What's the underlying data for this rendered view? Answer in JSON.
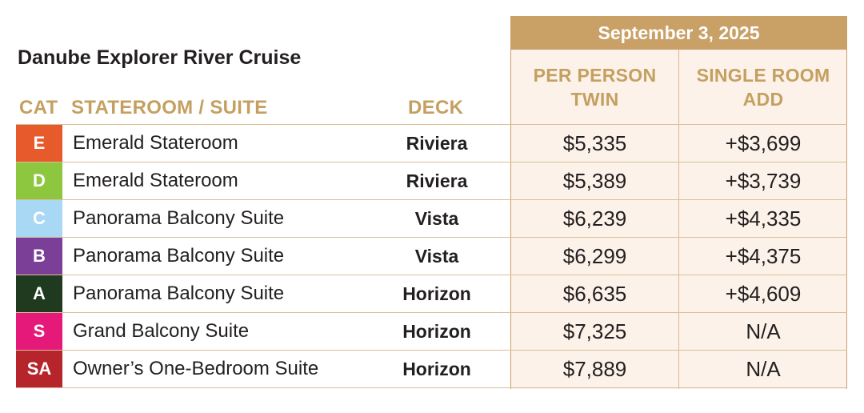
{
  "title": "Danube Explorer River Cruise",
  "date_header": "September 3, 2025",
  "headers": {
    "cat": "CAT",
    "room": "STATEROOM / SUITE",
    "deck": "DECK",
    "twin_line1": "PER PERSON",
    "twin_line2": "TWIN",
    "single_line1": "SINGLE ROOM",
    "single_line2": "ADD"
  },
  "colors": {
    "accent_gold": "#c9a066",
    "panel_bg": "#fcf2e9"
  },
  "rows": [
    {
      "cat": "E",
      "cat_color": "#e65a2c",
      "room": "Emerald Stateroom",
      "deck": "Riviera",
      "twin": "$5,335",
      "single": "+$3,699"
    },
    {
      "cat": "D",
      "cat_color": "#8dc63f",
      "room": "Emerald Stateroom",
      "deck": "Riviera",
      "twin": "$5,389",
      "single": "+$3,739"
    },
    {
      "cat": "C",
      "cat_color": "#a9d8f5",
      "room": "Panorama Balcony Suite",
      "deck": "Vista",
      "twin": "$6,239",
      "single": "+$4,335"
    },
    {
      "cat": "B",
      "cat_color": "#7b3f98",
      "room": "Panorama Balcony Suite",
      "deck": "Vista",
      "twin": "$6,299",
      "single": "+$4,375"
    },
    {
      "cat": "A",
      "cat_color": "#1f3a1f",
      "room": "Panorama Balcony Suite",
      "deck": "Horizon",
      "twin": "$6,635",
      "single": "+$4,609"
    },
    {
      "cat": "S",
      "cat_color": "#e5197a",
      "room": "Grand Balcony Suite",
      "deck": "Horizon",
      "twin": "$7,325",
      "single": "N/A"
    },
    {
      "cat": "SA",
      "cat_color": "#b5252b",
      "room": "Owner’s One-Bedroom Suite",
      "deck": "Horizon",
      "twin": "$7,889",
      "single": "N/A"
    }
  ]
}
